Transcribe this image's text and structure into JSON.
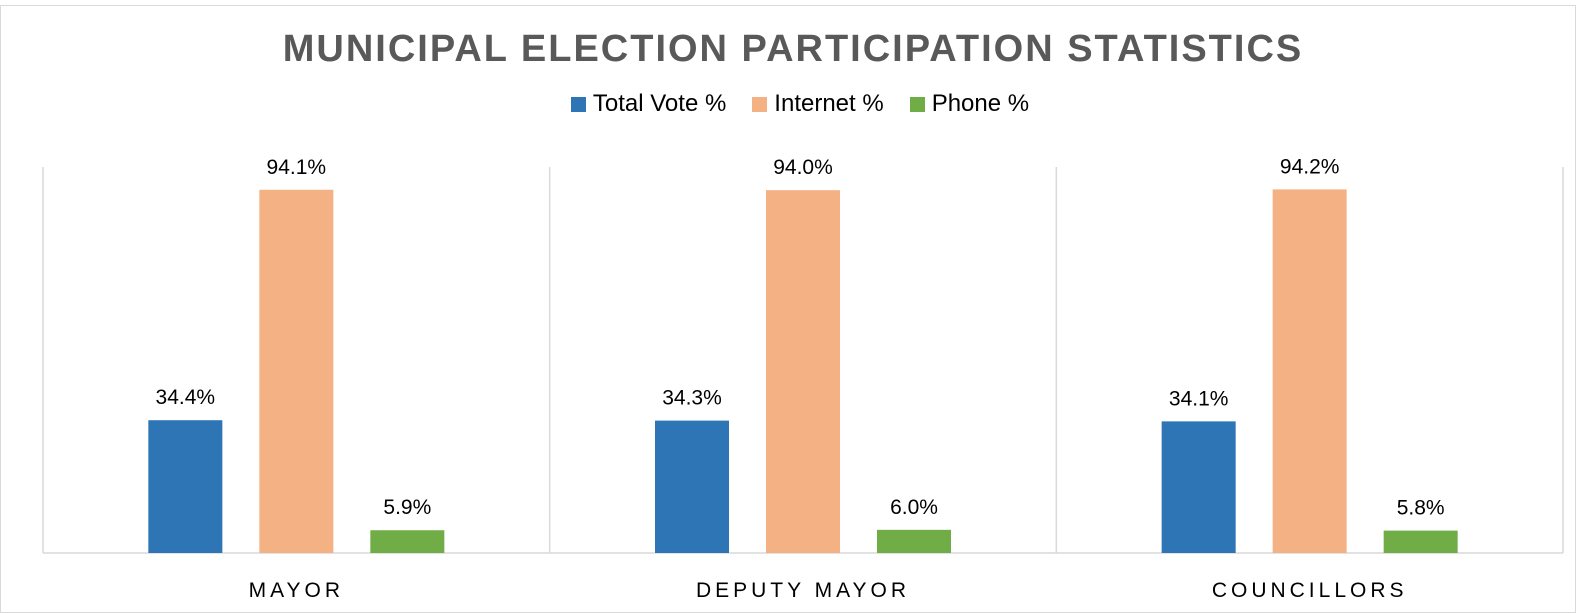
{
  "chart_data": {
    "type": "bar",
    "title": "MUNICIPAL ELECTION PARTICIPATION STATISTICS",
    "categories": [
      "MAYOR",
      "DEPUTY MAYOR",
      "COUNCILLORS"
    ],
    "series": [
      {
        "name": "Total Vote %",
        "color": "#2e75b6",
        "values": [
          34.4,
          34.3,
          34.1
        ],
        "labels": [
          "34.4%",
          "34.3%",
          "34.1%"
        ]
      },
      {
        "name": "Internet %",
        "color": "#f4b183",
        "values": [
          94.1,
          94.0,
          94.2
        ],
        "labels": [
          "94.1%",
          "94.0%",
          "94.2%"
        ]
      },
      {
        "name": "Phone %",
        "color": "#70ad47",
        "values": [
          5.9,
          6.0,
          5.8
        ],
        "labels": [
          "5.9%",
          "6.0%",
          "5.8%"
        ]
      }
    ],
    "ylim": [
      0,
      100
    ],
    "grid": false,
    "legend_position": "top"
  }
}
